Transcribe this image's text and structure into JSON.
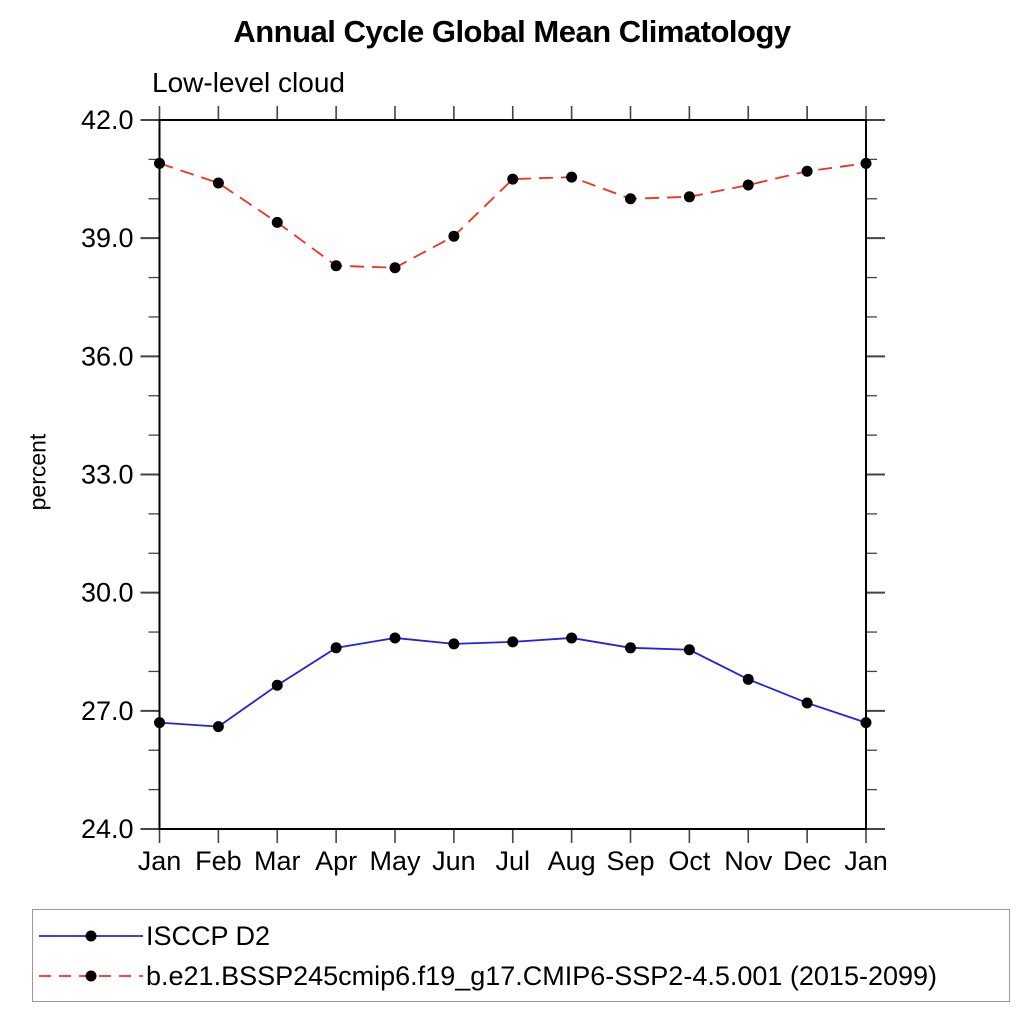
{
  "chart_data": {
    "type": "line",
    "title": "Annual Cycle Global Mean Climatology",
    "subtitle": "Low-level cloud",
    "xlabel": "",
    "ylabel": "percent",
    "categories": [
      "Jan",
      "Feb",
      "Mar",
      "Apr",
      "May",
      "Jun",
      "Jul",
      "Aug",
      "Sep",
      "Oct",
      "Nov",
      "Dec",
      "Jan"
    ],
    "ylim": [
      24.0,
      42.0
    ],
    "yticks_major": [
      24,
      27,
      30,
      33,
      36,
      39,
      42
    ],
    "ytick_labels": [
      "24.0",
      "27.0",
      "30.0",
      "33.0",
      "36.0",
      "39.0",
      "42.0"
    ],
    "ytick_minor_step": 1,
    "grid": false,
    "legend_position": "bottom-left",
    "axis_color": "#000000",
    "tick_color": "#444444",
    "series": [
      {
        "name": "ISCCP D2",
        "color": "#2222dd",
        "line_style": "solid",
        "marker": "filled-circle",
        "marker_color": "#000000",
        "values": [
          26.7,
          26.6,
          27.65,
          28.6,
          28.85,
          28.7,
          28.75,
          28.85,
          28.6,
          28.55,
          27.8,
          27.2,
          26.7
        ]
      },
      {
        "name": "b.e21.BSSP245cmip6.f19_g17.CMIP6-SSP2-4.5.001 (2015-2099)",
        "color": "#ee3322",
        "line_style": "dashed",
        "marker": "filled-circle",
        "marker_color": "#000000",
        "values": [
          40.9,
          40.4,
          39.4,
          38.3,
          38.25,
          39.05,
          40.5,
          40.55,
          40.0,
          40.05,
          40.35,
          40.7,
          40.9
        ]
      }
    ]
  }
}
